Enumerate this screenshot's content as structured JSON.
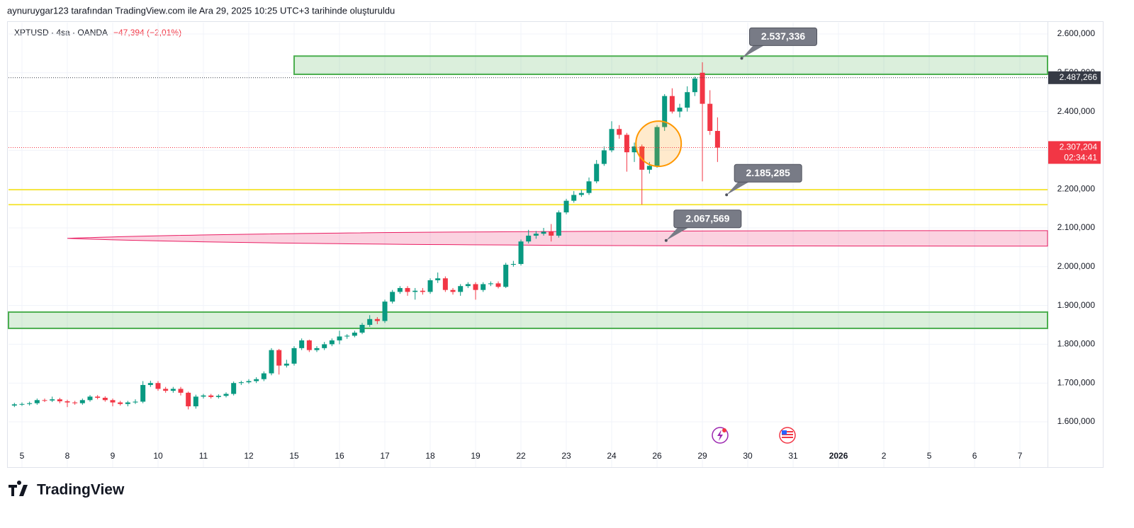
{
  "header": {
    "attribution": "aynuruygar123 tarafından TradingView.com ile Ara 29, 2025 10:25 UTC+3 tarihinde oluşturuldu"
  },
  "chart_data": {
    "type": "candlestick",
    "symbol": "XPTUSD · 4sa · OANDA",
    "change": "−47,394 (−2,01%)",
    "up_color": "#089981",
    "down_color": "#f23645",
    "open": [
      1642,
      1645,
      1646,
      1648,
      1656,
      1655,
      1658,
      1653,
      1650,
      1648,
      1656,
      1665,
      1662,
      1656,
      1650,
      1646,
      1650,
      1652,
      1695,
      1700,
      1685,
      1680,
      1685,
      1675,
      1640,
      1665,
      1668,
      1664,
      1667,
      1672,
      1700,
      1702,
      1705,
      1710,
      1725,
      1785,
      1745,
      1750,
      1790,
      1810,
      1785,
      1790,
      1800,
      1810,
      1820,
      1822,
      1830,
      1850,
      1865,
      1860,
      1910,
      1935,
      1945,
      1935,
      1938,
      1935,
      1965,
      1970,
      1940,
      1935,
      1950,
      1955,
      1940,
      1955,
      1957,
      1948,
      2005,
      2007,
      2065,
      2080,
      2085,
      2090,
      2080,
      2140,
      2170,
      2185,
      2190,
      2220,
      2265,
      2300,
      2355,
      2340,
      2295,
      2310,
      2250,
      2260,
      2360,
      2440,
      2400,
      2410,
      2450,
      2500,
      2420,
      2350
    ],
    "high": [
      1649,
      1650,
      1652,
      1660,
      1660,
      1665,
      1662,
      1657,
      1654,
      1660,
      1669,
      1669,
      1666,
      1660,
      1654,
      1654,
      1658,
      1705,
      1706,
      1705,
      1690,
      1690,
      1690,
      1678,
      1670,
      1672,
      1672,
      1671,
      1676,
      1704,
      1706,
      1710,
      1715,
      1730,
      1790,
      1788,
      1760,
      1795,
      1815,
      1812,
      1795,
      1806,
      1815,
      1835,
      1826,
      1835,
      1855,
      1875,
      1870,
      1915,
      1940,
      1950,
      1950,
      1945,
      1945,
      1970,
      1985,
      1975,
      1945,
      1955,
      1960,
      1960,
      1960,
      1962,
      1962,
      2010,
      2015,
      2070,
      2095,
      2092,
      2100,
      2110,
      2145,
      2175,
      2195,
      2198,
      2230,
      2275,
      2310,
      2375,
      2365,
      2345,
      2320,
      2315,
      2270,
      2365,
      2445,
      2460,
      2420,
      2465,
      2490,
      2527,
      2455,
      2385
    ],
    "low": [
      1638,
      1641,
      1642,
      1644,
      1651,
      1651,
      1648,
      1638,
      1644,
      1644,
      1652,
      1658,
      1652,
      1640,
      1642,
      1640,
      1646,
      1648,
      1690,
      1680,
      1675,
      1675,
      1668,
      1632,
      1634,
      1660,
      1660,
      1660,
      1663,
      1668,
      1695,
      1698,
      1700,
      1705,
      1720,
      1722,
      1740,
      1745,
      1785,
      1780,
      1780,
      1785,
      1795,
      1800,
      1814,
      1818,
      1826,
      1845,
      1852,
      1855,
      1905,
      1930,
      1925,
      1915,
      1928,
      1930,
      1958,
      1935,
      1928,
      1925,
      1945,
      1915,
      1935,
      1950,
      1944,
      1945,
      2000,
      2003,
      2060,
      2072,
      2080,
      2065,
      2075,
      2135,
      2165,
      2180,
      2185,
      2215,
      2260,
      2295,
      2330,
      2245,
      2270,
      2160,
      2240,
      2255,
      2350,
      2395,
      2385,
      2400,
      2440,
      2220,
      2340,
      2270
    ],
    "close": [
      1645,
      1646,
      1648,
      1656,
      1655,
      1658,
      1653,
      1650,
      1648,
      1656,
      1665,
      1662,
      1656,
      1650,
      1646,
      1650,
      1652,
      1695,
      1700,
      1685,
      1680,
      1685,
      1675,
      1640,
      1665,
      1668,
      1664,
      1667,
      1672,
      1700,
      1702,
      1705,
      1710,
      1725,
      1785,
      1745,
      1750,
      1790,
      1810,
      1785,
      1790,
      1800,
      1810,
      1820,
      1822,
      1830,
      1850,
      1865,
      1860,
      1910,
      1935,
      1945,
      1935,
      1938,
      1935,
      1965,
      1970,
      1940,
      1935,
      1950,
      1955,
      1940,
      1955,
      1957,
      1948,
      2005,
      2007,
      2065,
      2080,
      2085,
      2090,
      2080,
      2140,
      2170,
      2185,
      2190,
      2220,
      2265,
      2300,
      2355,
      2340,
      2295,
      2310,
      2250,
      2260,
      2360,
      2440,
      2400,
      2410,
      2450,
      2485,
      2420,
      2350,
      2307.204
    ],
    "xlim": [
      -0.78,
      136.65
    ],
    "xticks": [
      {
        "value": 1,
        "label": "5"
      },
      {
        "value": 7,
        "label": "8"
      },
      {
        "value": 13,
        "label": "9"
      },
      {
        "value": 19,
        "label": "10"
      },
      {
        "value": 25,
        "label": "11"
      },
      {
        "value": 31,
        "label": "12"
      },
      {
        "value": 37,
        "label": "15"
      },
      {
        "value": 43,
        "label": "16"
      },
      {
        "value": 49,
        "label": "17"
      },
      {
        "value": 55,
        "label": "18"
      },
      {
        "value": 61,
        "label": "19"
      },
      {
        "value": 67,
        "label": "22"
      },
      {
        "value": 73,
        "label": "23"
      },
      {
        "value": 79,
        "label": "24"
      },
      {
        "value": 85,
        "label": "26"
      },
      {
        "value": 91,
        "label": "29"
      },
      {
        "value": 97,
        "label": "30"
      },
      {
        "value": 103,
        "label": "31"
      },
      {
        "value": 109,
        "label": "2026"
      },
      {
        "value": 115,
        "label": "2"
      },
      {
        "value": 121,
        "label": "5"
      },
      {
        "value": 127,
        "label": "6"
      },
      {
        "value": 133,
        "label": "7"
      }
    ],
    "ylim": [
      1483.2,
      2629.2
    ],
    "yticks": [
      {
        "value": 1600,
        "label": "1.600,000"
      },
      {
        "value": 1700,
        "label": "1.700,000"
      },
      {
        "value": 1800,
        "label": "1.800,000"
      },
      {
        "value": 1900,
        "label": "1.900,000"
      },
      {
        "value": 2000,
        "label": "2.000,000"
      },
      {
        "value": 2100,
        "label": "2.100,000"
      },
      {
        "value": 2200,
        "label": "2.200,000"
      },
      {
        "value": 2300,
        "label": "2.300,000"
      },
      {
        "value": 2400,
        "label": "2.400,000"
      },
      {
        "value": 2500,
        "label": "2.500,000"
      },
      {
        "value": 2600,
        "label": "2.600,000"
      }
    ],
    "grid": true,
    "zones": [
      {
        "top": 2543,
        "bottom": 2496,
        "start": 37,
        "shape": "rect",
        "color": "#4caf50"
      },
      {
        "top": 1883,
        "bottom": 1841,
        "start": -0.78,
        "shape": "rect",
        "color": "#4caf50"
      },
      {
        "top": 2093,
        "bottom": 2053,
        "start": 7,
        "shape": "taper",
        "color": "#e91e63"
      }
    ],
    "lines": [
      {
        "value": 2198.5,
        "color": "#f5e642"
      },
      {
        "value": 2160,
        "color": "#f5e642"
      }
    ],
    "highlight": {
      "x": 85.2,
      "price": 2317,
      "color": "#ff9800"
    },
    "callouts": [
      {
        "value": 2537.336,
        "label": "2.537,336",
        "x": 96.2
      },
      {
        "value": 2185.285,
        "label": "2.185,285",
        "x": 94.2
      },
      {
        "value": 2067.569,
        "label": "2.067,569",
        "x": 86.2
      }
    ],
    "price_labels": [
      {
        "value": 2487.266,
        "label": "2.487,266",
        "color": "#363a45"
      },
      {
        "value": 2307.204,
        "label": "2.307,204",
        "countdown": "02:34:41",
        "color": "#f23645"
      }
    ]
  },
  "footer": {
    "logo": "TradingView"
  }
}
